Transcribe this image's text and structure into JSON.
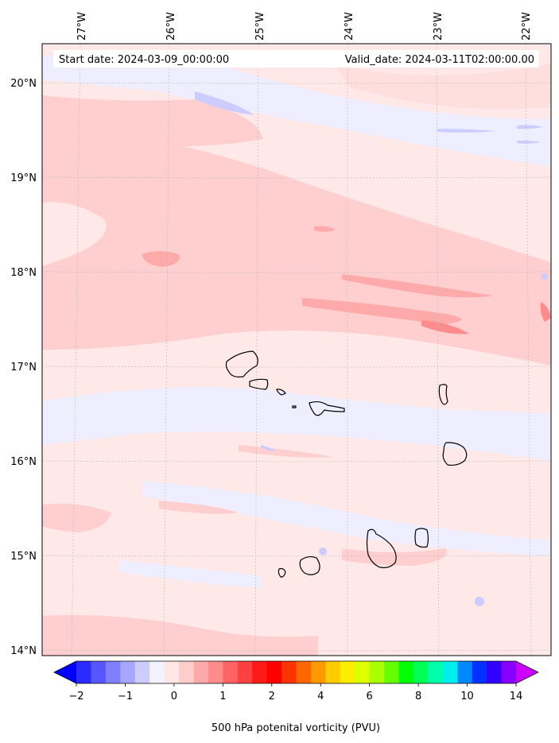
{
  "header": {
    "start_date": "Start date: 2024-03-09_00:00:00",
    "valid_date": "Valid_date: 2024-03-11T02:00:00.00"
  },
  "axes": {
    "lon_labels": [
      "27°W",
      "26°W",
      "25°W",
      "24°W",
      "23°W",
      "22°W"
    ],
    "lat_labels": [
      "20°N",
      "19°N",
      "18°N",
      "17°N",
      "16°N",
      "15°N",
      "14°N"
    ]
  },
  "colorbar": {
    "title": "500 hPa potenital vorticity (PVU)",
    "tick_labels": [
      "−2",
      "−1",
      "0",
      "1",
      "2",
      "4",
      "6",
      "8",
      "10",
      "14"
    ],
    "tick_values": [
      -2,
      -1,
      0,
      1,
      2,
      4,
      6,
      8,
      10,
      14
    ],
    "colors": [
      "#0000ff",
      "#2b2bff",
      "#5656ff",
      "#8080ff",
      "#a6a6ff",
      "#ccccff",
      "#f3f3ff",
      "#ffe6e6",
      "#ffcccc",
      "#ffaaaa",
      "#ff8c8c",
      "#ff6464",
      "#ff4040",
      "#ff1a1a",
      "#ff0000",
      "#ff3300",
      "#ff6600",
      "#ff9900",
      "#ffcc00",
      "#ffee00",
      "#ddff00",
      "#aaff00",
      "#66ff00",
      "#00ff00",
      "#00ff55",
      "#00ffaa",
      "#00eeee",
      "#0088ff",
      "#0033ff",
      "#3300ff",
      "#8800ff",
      "#cc00ff"
    ]
  },
  "field_colors": {
    "background": "#ffe8e8",
    "light_blue": "#eeeeff",
    "blue": "#ccccff",
    "pink": "#ffcfcf",
    "red": "#ffaaaa",
    "outline": "#000000"
  }
}
